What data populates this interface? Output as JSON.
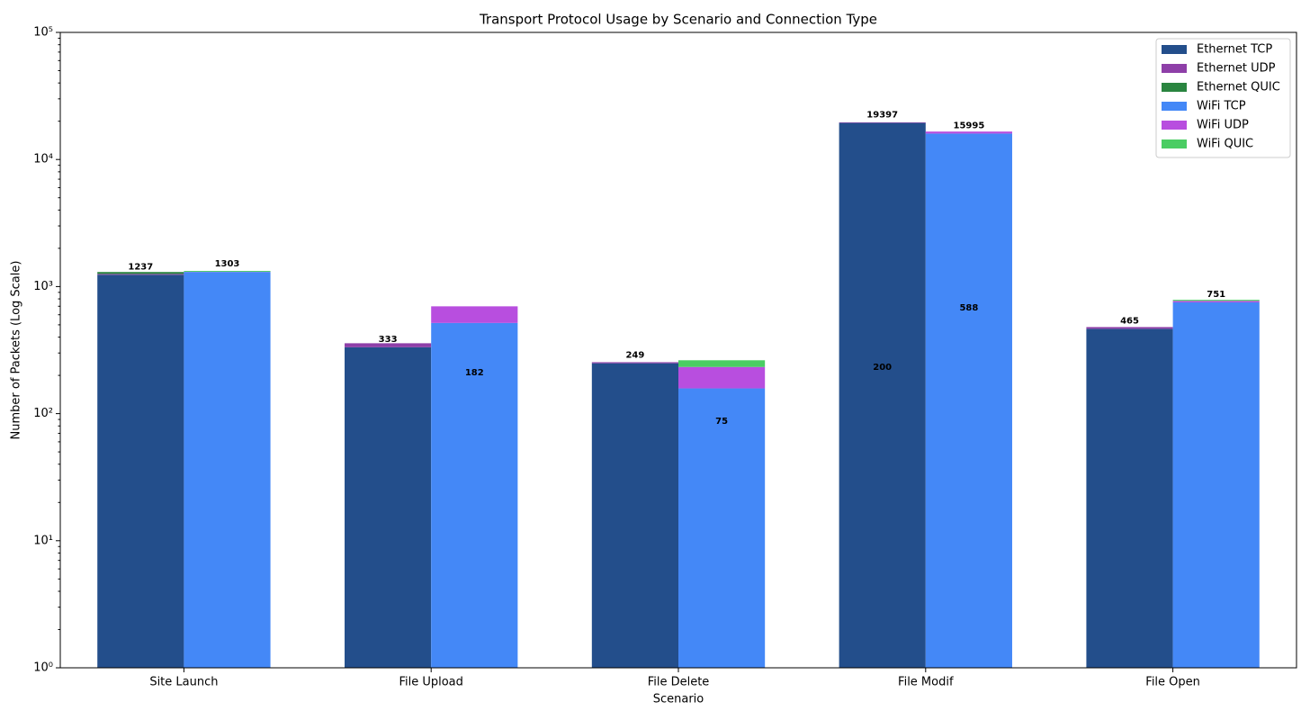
{
  "chart_data": {
    "type": "bar",
    "stacked": true,
    "log": true,
    "title": "Transport Protocol Usage by Scenario and Connection Type",
    "x_label": "Scenario",
    "y_label": "Number of Packets (Log Scale)",
    "categories": [
      "Site Launch",
      "File Upload",
      "File Delete",
      "File Modif",
      "File Open"
    ],
    "series": [
      {
        "name": "Ethernet TCP",
        "color": "#234e8b",
        "values": [
          1237,
          333,
          249,
          19397,
          465
        ]
      },
      {
        "name": "Ethernet UDP",
        "color": "#8e3fa8",
        "values": [
          20,
          25,
          5,
          200,
          15
        ]
      },
      {
        "name": "Ethernet QUIC",
        "color": "#2a8540",
        "values": [
          45,
          0,
          0,
          0,
          0
        ]
      },
      {
        "name": "WiFi TCP",
        "color": "#4488f7",
        "values": [
          1303,
          517,
          158,
          15995,
          751
        ]
      },
      {
        "name": "WiFi UDP",
        "color": "#b84edf",
        "values": [
          5,
          182,
          75,
          588,
          20
        ]
      },
      {
        "name": "WiFi QUIC",
        "color": "#4acd63",
        "values": [
          20,
          0,
          30,
          0,
          15
        ]
      }
    ],
    "ylim": [
      1,
      100000
    ],
    "yticks": [
      {
        "value": 1,
        "label": "10⁰"
      },
      {
        "value": 10,
        "label": "10¹"
      },
      {
        "value": 100,
        "label": "10²"
      },
      {
        "value": 1000,
        "label": "10³"
      },
      {
        "value": 10000,
        "label": "10⁴"
      },
      {
        "value": 100000,
        "label": "10⁵"
      }
    ],
    "legend": "upper right"
  }
}
